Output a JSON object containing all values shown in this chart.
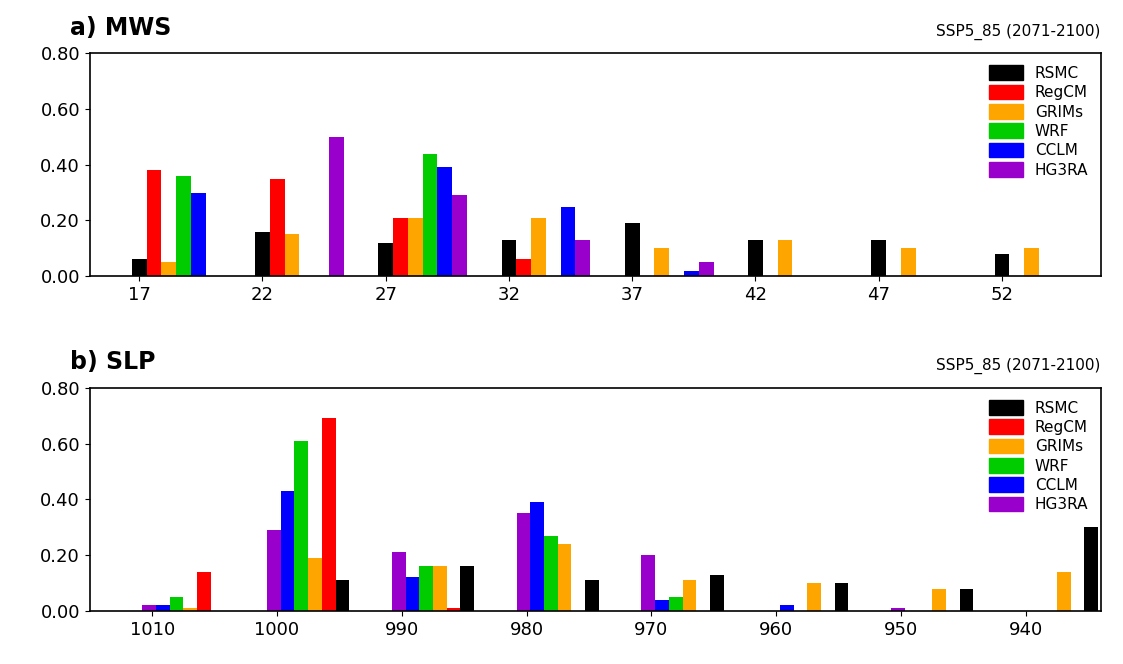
{
  "panel_a": {
    "title": "a) MWS",
    "subtitle": "SSP5_85 (2071-2100)",
    "ylim": [
      0,
      0.8
    ],
    "yticks": [
      0.0,
      0.2,
      0.4,
      0.6,
      0.8
    ],
    "xtick_positions": [
      17,
      22,
      27,
      32,
      37,
      42,
      47,
      52
    ],
    "xlim": [
      15.0,
      56.0
    ],
    "group_centers": [
      18.5,
      23.5,
      28.5,
      33.5,
      38.5,
      43.5,
      48.5,
      53.5
    ],
    "bar_width": 0.6,
    "mws_data": {
      "RSMC": [
        0.06,
        0.16,
        0.12,
        0.13,
        0.19,
        0.13,
        0.13,
        0.08
      ],
      "RegCM": [
        0.38,
        0.35,
        0.21,
        0.06,
        0.0,
        0.0,
        0.0,
        0.0
      ],
      "GRIMs": [
        0.05,
        0.15,
        0.21,
        0.21,
        0.1,
        0.13,
        0.1,
        0.1
      ],
      "WRF": [
        0.36,
        0.0,
        0.44,
        0.0,
        0.0,
        0.0,
        0.0,
        0.0
      ],
      "CCLM": [
        0.3,
        0.0,
        0.39,
        0.25,
        0.02,
        0.0,
        0.0,
        0.0
      ],
      "HG3RA": [
        0.0,
        0.5,
        0.29,
        0.13,
        0.05,
        0.0,
        0.0,
        0.0
      ]
    }
  },
  "panel_b": {
    "title": "b) SLP",
    "subtitle": "SSP5_85 (2071-2100)",
    "ylim": [
      0,
      0.8
    ],
    "yticks": [
      0.0,
      0.2,
      0.4,
      0.6,
      0.8
    ],
    "xtick_positions": [
      1010,
      1000,
      990,
      980,
      970,
      960,
      950,
      940
    ],
    "xlim": [
      1015.0,
      934.0
    ],
    "group_centers": [
      1007.5,
      997.5,
      987.5,
      977.5,
      967.5,
      957.5,
      947.5,
      937.5
    ],
    "bar_width": 1.1,
    "slp_data": {
      "RSMC": [
        0.0,
        0.11,
        0.16,
        0.11,
        0.13,
        0.1,
        0.08,
        0.3
      ],
      "RegCM": [
        0.14,
        0.69,
        0.01,
        0.0,
        0.0,
        0.0,
        0.0,
        0.0
      ],
      "GRIMs": [
        0.01,
        0.19,
        0.16,
        0.24,
        0.11,
        0.1,
        0.08,
        0.14
      ],
      "WRF": [
        0.05,
        0.61,
        0.16,
        0.27,
        0.05,
        0.0,
        0.0,
        0.0
      ],
      "CCLM": [
        0.02,
        0.43,
        0.12,
        0.39,
        0.04,
        0.02,
        0.0,
        0.0
      ],
      "HG3RA": [
        0.02,
        0.29,
        0.21,
        0.35,
        0.2,
        0.0,
        0.01,
        0.0
      ]
    }
  },
  "series_names": [
    "RSMC",
    "RegCM",
    "GRIMs",
    "WRF",
    "CCLM",
    "HG3RA"
  ],
  "series_colors": [
    "#000000",
    "#ff0000",
    "#ffa500",
    "#00cc00",
    "#0000ff",
    "#9900cc"
  ],
  "background_color": "#ffffff"
}
